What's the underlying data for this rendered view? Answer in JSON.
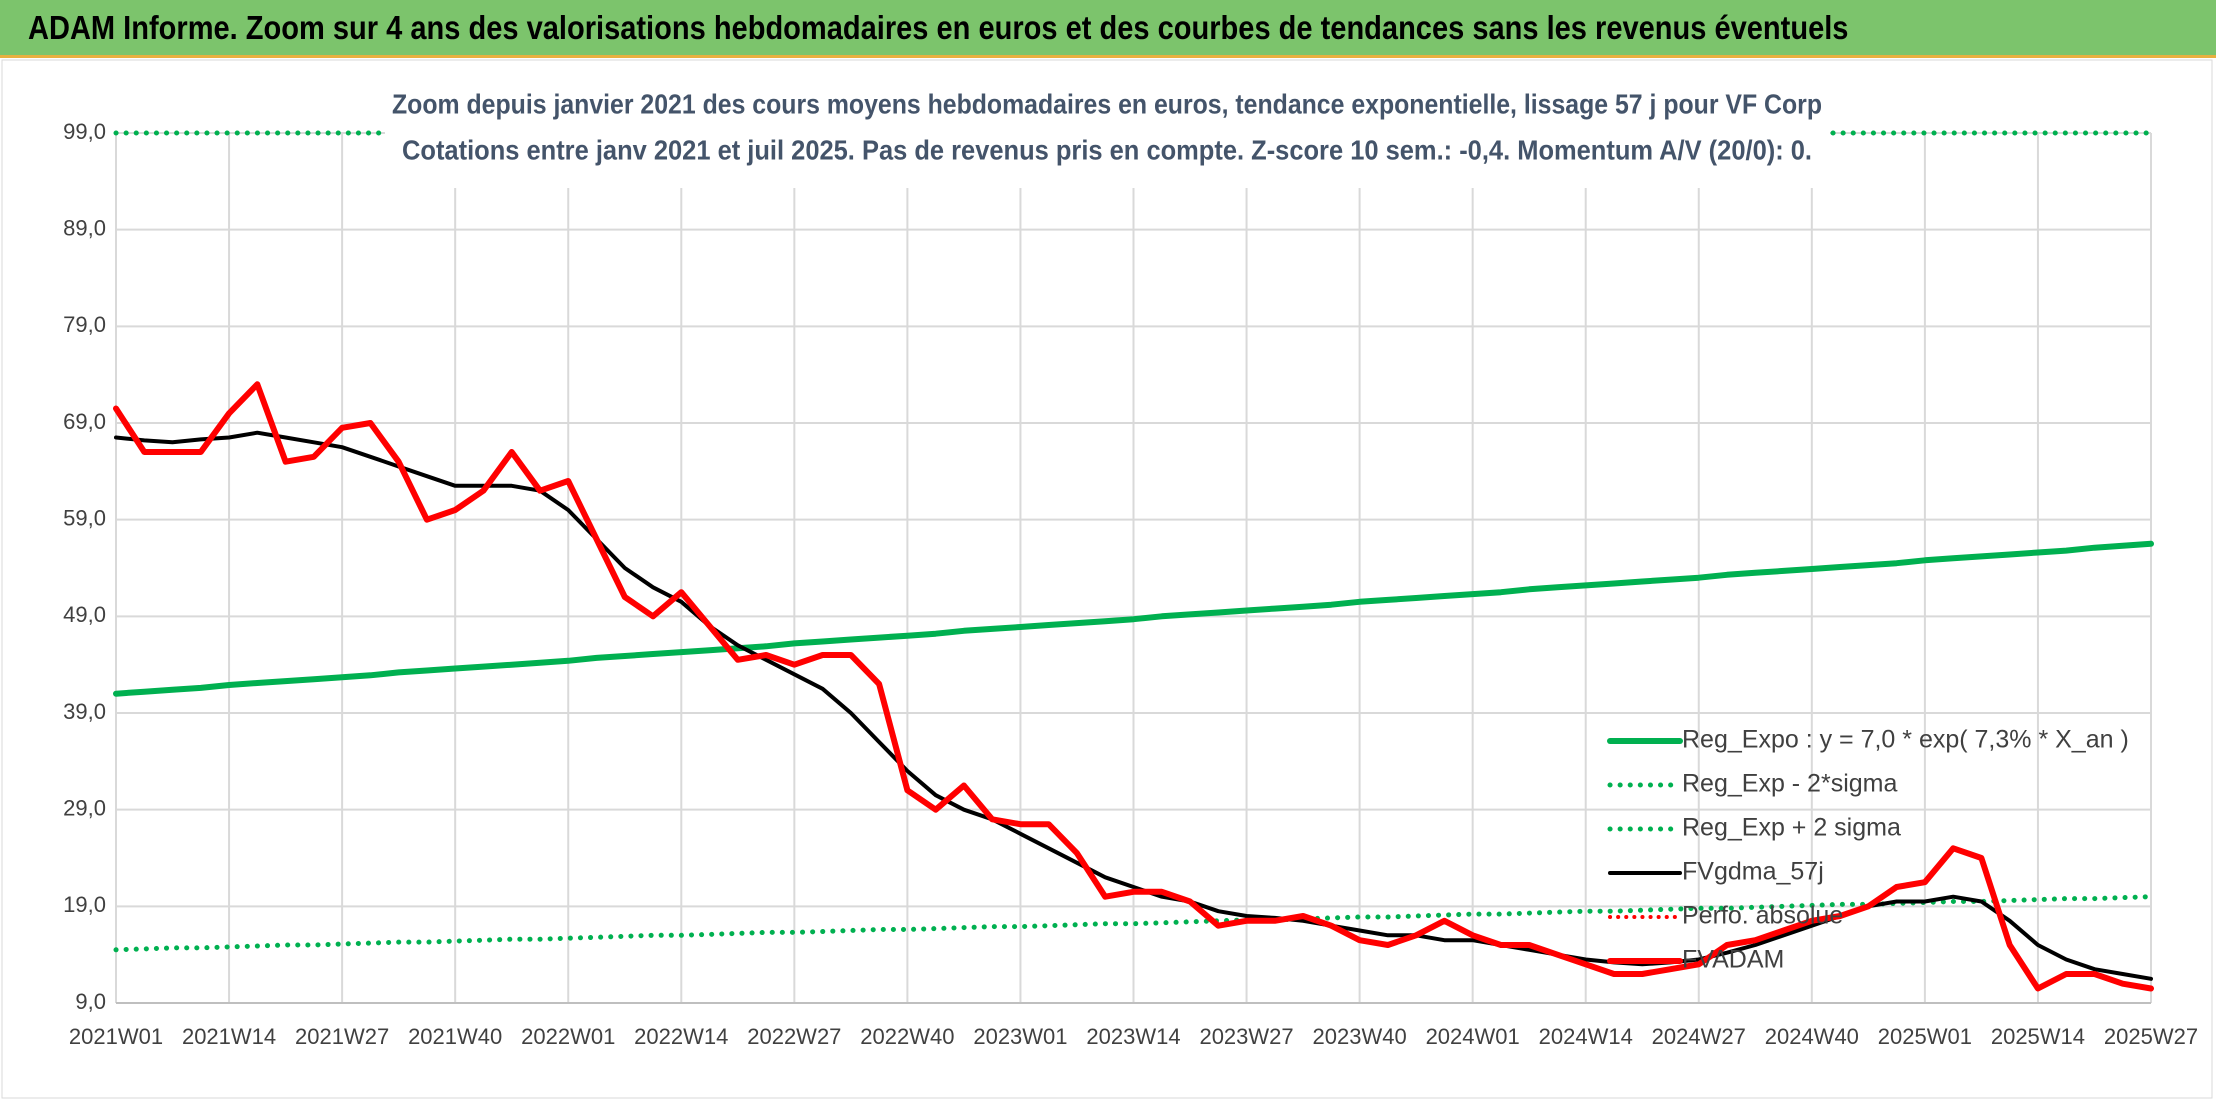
{
  "header": {
    "title": "ADAM Informe. Zoom sur 4 ans des valorisations hebdomadaires en euros et des courbes de tendances sans les revenus éventuels"
  },
  "chart_data": {
    "type": "line",
    "title": "Zoom depuis janvier 2021 des cours moyens hebdomadaires en euros, tendance exponentielle, lissage 57 j pour VF Corp",
    "subtitle": "Cotations entre janv 2021 et juil 2025. Pas de revenus pris en compte. Z-score 10 sem.: -0,4. Momentum A/V (20/0): 0.",
    "categories": [
      "2021W01",
      null,
      null,
      null,
      "2021W14",
      null,
      null,
      null,
      "2021W27",
      null,
      null,
      null,
      "2021W40",
      null,
      null,
      null,
      "2022W01",
      null,
      null,
      null,
      "2022W14",
      null,
      null,
      null,
      "2022W27",
      null,
      null,
      null,
      "2022W40",
      null,
      null,
      null,
      "2023W01",
      null,
      null,
      null,
      "2023W14",
      null,
      null,
      null,
      "2023W27",
      null,
      null,
      null,
      "2023W40",
      null,
      null,
      null,
      "2024W01",
      null,
      null,
      null,
      "2024W14",
      null,
      null,
      null,
      "2024W27",
      null,
      null,
      null,
      "2024W40",
      null,
      null,
      null,
      "2025W01",
      null,
      null,
      null,
      "2025W14",
      null,
      null,
      null,
      "2025W27"
    ],
    "ylim": [
      9,
      99
    ],
    "yticks": [
      {
        "value": 9,
        "label": "9,0"
      },
      {
        "value": 19,
        "label": "19,0"
      },
      {
        "value": 29,
        "label": "29,0"
      },
      {
        "value": 39,
        "label": "39,0"
      },
      {
        "value": 49,
        "label": "49,0"
      },
      {
        "value": 59,
        "label": "59,0"
      },
      {
        "value": 69,
        "label": "69,0"
      },
      {
        "value": 79,
        "label": "79,0"
      },
      {
        "value": 89,
        "label": "89,0"
      },
      {
        "value": 99,
        "label": "99,0"
      }
    ],
    "grid": true,
    "legend": "lower right",
    "series": [
      {
        "name": "Reg_Expo : y = 7,0 * exp( 7,3% *  X_an )",
        "color": "#00b050",
        "style": "solid",
        "width": 6,
        "values": [
          41.0,
          41.2,
          41.4,
          41.6,
          41.9,
          42.1,
          42.3,
          42.5,
          42.7,
          42.9,
          43.2,
          43.4,
          43.6,
          43.8,
          44.0,
          44.2,
          44.4,
          44.7,
          44.9,
          45.1,
          45.3,
          45.5,
          45.7,
          45.9,
          46.2,
          46.4,
          46.6,
          46.8,
          47.0,
          47.2,
          47.5,
          47.7,
          47.9,
          48.1,
          48.3,
          48.5,
          48.7,
          49.0,
          49.2,
          49.4,
          49.6,
          49.8,
          50.0,
          50.2,
          50.5,
          50.7,
          50.9,
          51.1,
          51.3,
          51.5,
          51.8,
          52.0,
          52.2,
          52.4,
          52.6,
          52.8,
          53.0,
          53.3,
          53.5,
          53.7,
          53.9,
          54.1,
          54.3,
          54.5,
          54.8,
          55.0,
          55.2,
          55.4,
          55.6,
          55.8,
          56.1,
          56.3,
          56.5
        ]
      },
      {
        "name": "Reg_Exp - 2*sigma",
        "color": "#00b050",
        "style": "dotted",
        "width": 5,
        "values": [
          14.5,
          14.6,
          14.7,
          14.7,
          14.8,
          14.9,
          15.0,
          15.0,
          15.1,
          15.2,
          15.3,
          15.3,
          15.4,
          15.5,
          15.6,
          15.6,
          15.7,
          15.8,
          15.9,
          16.0,
          16.0,
          16.1,
          16.2,
          16.3,
          16.3,
          16.4,
          16.5,
          16.6,
          16.6,
          16.7,
          16.8,
          16.9,
          16.9,
          17.0,
          17.1,
          17.2,
          17.2,
          17.3,
          17.4,
          17.5,
          17.6,
          17.6,
          17.7,
          17.8,
          17.9,
          17.9,
          18.0,
          18.1,
          18.2,
          18.2,
          18.3,
          18.4,
          18.5,
          18.5,
          18.6,
          18.7,
          18.8,
          18.8,
          18.9,
          19.0,
          19.1,
          19.2,
          19.2,
          19.3,
          19.4,
          19.5,
          19.5,
          19.6,
          19.7,
          19.8,
          19.8,
          19.9,
          20.0
        ]
      },
      {
        "name": "Reg_Exp + 2 sigma",
        "color": "#00b050",
        "style": "dotted",
        "width": 5,
        "values": [
          99,
          99,
          99,
          99,
          99,
          99,
          99,
          99,
          99,
          99,
          99,
          99,
          99,
          99,
          99,
          99,
          99,
          99,
          99,
          99,
          99,
          99,
          99,
          99,
          99,
          99,
          99,
          99,
          99,
          99,
          99,
          99,
          99,
          99,
          99,
          99,
          99,
          99,
          99,
          99,
          99,
          99,
          99,
          99,
          99,
          99,
          99,
          99,
          99,
          99,
          99,
          99,
          99,
          99,
          99,
          99,
          99,
          99,
          99,
          99,
          99,
          99,
          99,
          99,
          99,
          99,
          99,
          99,
          99,
          99,
          99,
          99,
          99
        ]
      },
      {
        "name": "FVgdma_57j",
        "color": "#000000",
        "style": "solid",
        "width": 4,
        "values": [
          67.5,
          67.2,
          67,
          67.3,
          67.5,
          68,
          67.5,
          67,
          66.5,
          65.5,
          64.5,
          63.5,
          62.5,
          62.5,
          62.5,
          62,
          60,
          57,
          54,
          52,
          50.5,
          48,
          46,
          44.5,
          43,
          41.5,
          39,
          36,
          33,
          30.5,
          29,
          28,
          26.5,
          25,
          23.5,
          22,
          21,
          20,
          19.5,
          18.5,
          18,
          17.8,
          17.5,
          17,
          16.5,
          16,
          16,
          15.5,
          15.5,
          15,
          14.5,
          14,
          13.5,
          13.2,
          13,
          13.2,
          13.5,
          14.2,
          15,
          16,
          17,
          18,
          19,
          19.5,
          19.5,
          20,
          19.5,
          17.5,
          15,
          13.5,
          12.5,
          12,
          11.5
        ]
      },
      {
        "name": "Perfo. absolue",
        "color": "#ff0000",
        "style": "dotted",
        "width": 4,
        "values": [
          null,
          null,
          null,
          null,
          null,
          null,
          null,
          null,
          null,
          null,
          null,
          null,
          null,
          null,
          null,
          null,
          null,
          null,
          null,
          null,
          null,
          null,
          null,
          null,
          null,
          null,
          null,
          null,
          null,
          null,
          null,
          null,
          null,
          null,
          null,
          null,
          null,
          null,
          null,
          null,
          null,
          null,
          null,
          null,
          null,
          null,
          null,
          null,
          null,
          null,
          null,
          null,
          null,
          null,
          null,
          null,
          null,
          null,
          null,
          null,
          null,
          null,
          null,
          null,
          null,
          null,
          null,
          null,
          null,
          null,
          null,
          null,
          null
        ]
      },
      {
        "name": "FVADAM",
        "color": "#ff0000",
        "style": "solid",
        "width": 6,
        "values": [
          70.5,
          66,
          66,
          66,
          70,
          73,
          65,
          65.5,
          68.5,
          69,
          65,
          59,
          60,
          62,
          66,
          62,
          63,
          57,
          51,
          49,
          51.5,
          48,
          44.5,
          45,
          44,
          45,
          45,
          42,
          31,
          29,
          31.5,
          28,
          27.5,
          27.5,
          24.5,
          20,
          20.5,
          20.5,
          19.5,
          17,
          17.5,
          17.5,
          18,
          17,
          15.5,
          15,
          16,
          17.5,
          16,
          15,
          15,
          14,
          13,
          12,
          12,
          12.5,
          13,
          15,
          15.5,
          16.5,
          17.5,
          18,
          19,
          21,
          21.5,
          25,
          24,
          15,
          10.5,
          12,
          12,
          11,
          10.5
        ]
      }
    ]
  }
}
